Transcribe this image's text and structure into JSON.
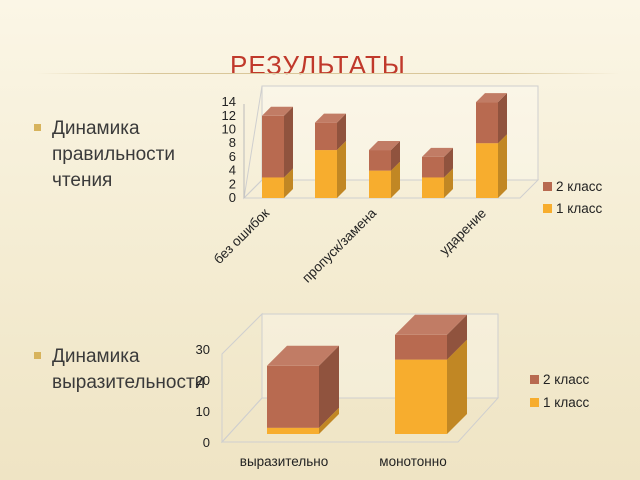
{
  "slide": {
    "title": "РЕЗУЛЬТАТЫ",
    "bullet1": "Динамика правильности чтения",
    "bullet2": "Динамика выразительности"
  },
  "colors": {
    "class1": "#f7ad2e",
    "class2": "#b86a50"
  },
  "chart_data": [
    {
      "type": "bar",
      "stacked": true,
      "categories": [
        "без ошибок",
        "пропуск/замена",
        "",
        "",
        "ударение"
      ],
      "series": [
        {
          "name": "1 класс",
          "values": [
            3,
            7,
            4,
            3,
            8
          ]
        },
        {
          "name": "2 класс",
          "values": [
            9,
            4,
            3,
            3,
            6
          ]
        }
      ],
      "yticks": [
        "0",
        "2",
        "4",
        "6",
        "8",
        "10",
        "12",
        "14"
      ],
      "ylim": [
        0,
        14
      ],
      "legend": "right"
    },
    {
      "type": "bar",
      "stacked": true,
      "categories": [
        "выразительно",
        "монотонно"
      ],
      "series": [
        {
          "name": "1 класс",
          "values": [
            2,
            24
          ]
        },
        {
          "name": "2 класс",
          "values": [
            20,
            8
          ]
        }
      ],
      "yticks": [
        "0",
        "10",
        "20",
        "30"
      ],
      "ylim": [
        0,
        30
      ],
      "legend": "right"
    }
  ]
}
